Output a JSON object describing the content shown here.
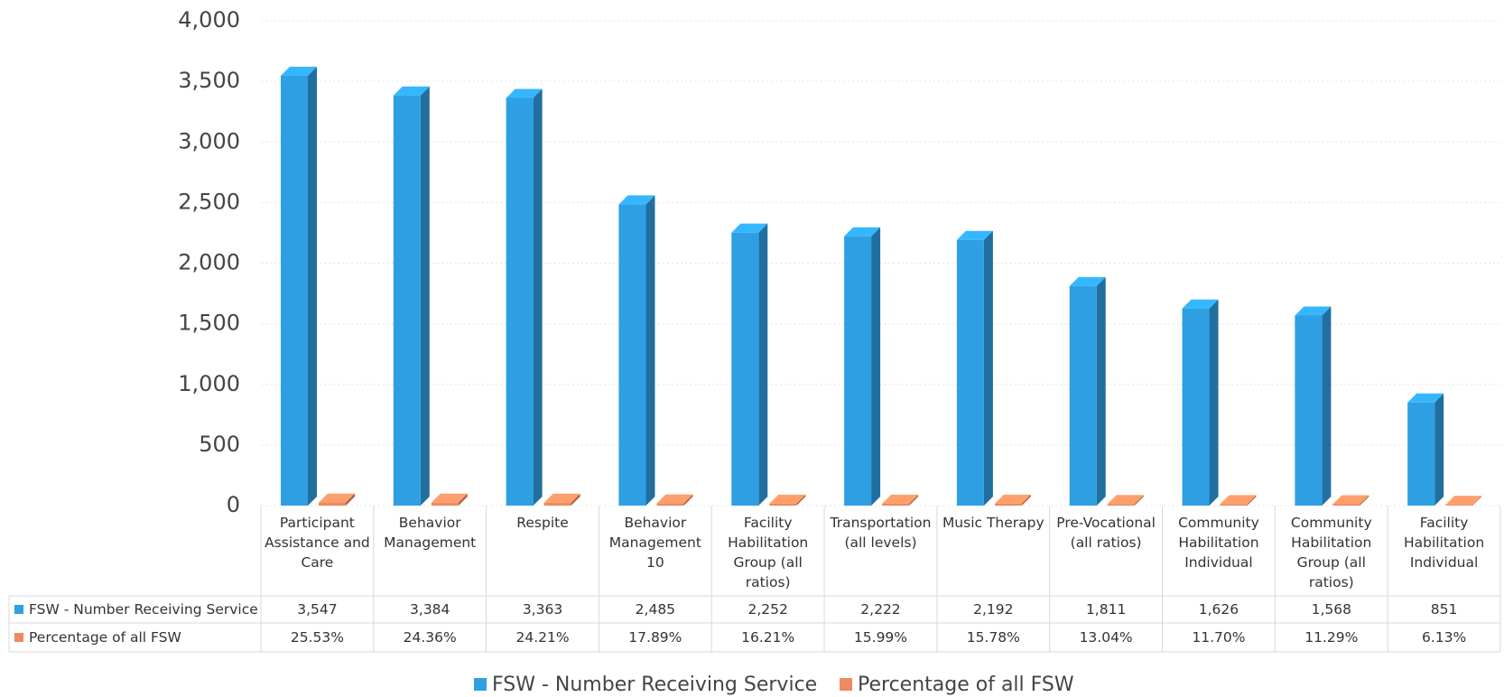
{
  "chart_data": {
    "type": "bar3d",
    "categories": [
      "Participant Assistance and Care",
      "Behavior Management",
      "Respite",
      "Behavior Management 10",
      "Facility Habilitation Group (all ratios)",
      "Transportation (all levels)",
      "Music Therapy",
      "Pre-Vocational (all ratios)",
      "Community Habilitation Individual",
      "Community Habilitation Group (all ratios)",
      "Facility Habilitation Individual"
    ],
    "series": [
      {
        "name": "FSW - Number Receiving Service",
        "color": "#2e9fe3",
        "values": [
          3547,
          3384,
          3363,
          2485,
          2252,
          2222,
          2192,
          1811,
          1626,
          1568,
          851
        ],
        "value_labels": [
          "3,547",
          "3,384",
          "3,363",
          "2,485",
          "2,252",
          "2,222",
          "2,192",
          "1,811",
          "1,626",
          "1,568",
          "851"
        ]
      },
      {
        "name": "Percentage of all FSW",
        "color": "#ee8a5e",
        "values": [
          25.53,
          24.36,
          24.21,
          17.89,
          16.21,
          15.99,
          15.78,
          13.04,
          11.7,
          11.29,
          6.13
        ],
        "value_labels": [
          "25.53%",
          "24.36%",
          "24.21%",
          "17.89%",
          "16.21%",
          "15.99%",
          "15.78%",
          "13.04%",
          "11.70%",
          "11.29%",
          "6.13%"
        ]
      }
    ],
    "ylim": [
      0,
      4000
    ],
    "yticks": [
      0,
      500,
      {
        "value": 1000,
        "label": "1,000"
      },
      {
        "value": 1500,
        "label": "1,500"
      },
      {
        "value": 2000,
        "label": "2,000"
      },
      {
        "value": 2500,
        "label": "2,500"
      },
      {
        "value": 3000,
        "label": "3,000"
      },
      {
        "value": 3500,
        "label": "3,500"
      },
      {
        "value": 4000,
        "label": "4,000"
      }
    ],
    "grid": true,
    "legend": "bottom"
  }
}
